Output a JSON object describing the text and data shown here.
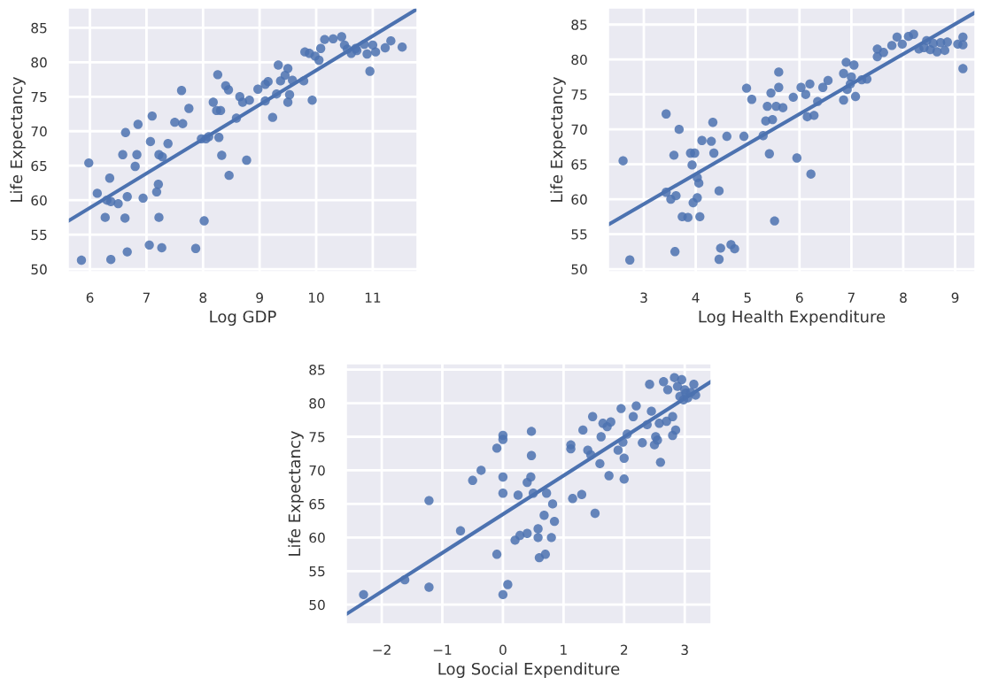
{
  "chart_data": [
    {
      "type": "scatter",
      "xlabel": "Log GDP",
      "ylabel": "Life Expectancy",
      "xlim": [
        5.6,
        11.8
      ],
      "ylim": [
        49.5,
        88
      ],
      "xticks": [
        6,
        7,
        8,
        9,
        10,
        11
      ],
      "yticks": [
        50,
        55,
        60,
        65,
        70,
        75,
        80,
        85
      ],
      "grid": true,
      "series": [
        {
          "marker": "circle",
          "color": "#4c72b0",
          "x": [
            5.85,
            5.98,
            6.13,
            6.27,
            6.3,
            6.35,
            6.37,
            6.37,
            6.5,
            6.58,
            6.62,
            6.63,
            6.66,
            6.66,
            6.8,
            6.83,
            6.85,
            6.94,
            7.05,
            7.07,
            7.1,
            7.18,
            7.21,
            7.22,
            7.22,
            7.27,
            7.28,
            7.38,
            7.5,
            7.62,
            7.64,
            7.75,
            7.87,
            7.97,
            8.02,
            8.05,
            8.1,
            8.18,
            8.24,
            8.26,
            8.28,
            8.31,
            8.33,
            8.4,
            8.45,
            8.46,
            8.59,
            8.65,
            8.7,
            8.77,
            8.82,
            8.97,
            9.1,
            9.1,
            9.15,
            9.23,
            9.3,
            9.33,
            9.37,
            9.45,
            9.5,
            9.5,
            9.53,
            9.58,
            9.78,
            9.8,
            9.88,
            9.93,
            9.98,
            10.05,
            10.08,
            10.15,
            10.3,
            10.45,
            10.5,
            10.55,
            10.62,
            10.7,
            10.72,
            10.85,
            10.9,
            10.95,
            11.0,
            11.05,
            11.22,
            11.32,
            11.52
          ],
          "values": [
            51.3,
            65.4,
            61,
            57.5,
            60,
            63.2,
            59.8,
            51.4,
            59.5,
            66.6,
            57.4,
            69.8,
            60.5,
            52.5,
            64.9,
            66.6,
            71,
            60.3,
            53.5,
            68.5,
            72.2,
            61.2,
            62.3,
            66.6,
            57.5,
            53.1,
            66.3,
            68.2,
            71.3,
            75.9,
            71.1,
            73.3,
            53,
            68.9,
            57,
            68.9,
            69.2,
            74.2,
            73,
            78.2,
            69.1,
            73,
            66.5,
            76.6,
            76,
            63.6,
            71.9,
            75,
            74.2,
            65.8,
            74.5,
            76.1,
            74.4,
            76.8,
            77.2,
            72,
            75.4,
            79.6,
            77.3,
            78.1,
            79.1,
            74.2,
            75.3,
            77.4,
            77.3,
            81.5,
            81.3,
            74.5,
            80.9,
            80.3,
            82,
            83.3,
            83.4,
            83.7,
            82.5,
            81.9,
            81.3,
            82,
            81.7,
            82.6,
            81.2,
            78.7,
            82.5,
            81.5,
            82.1,
            83.1,
            82.2
          ]
        },
        {
          "type": "line",
          "color": "#4c72b0",
          "x": [
            5.6,
            11.8
          ],
          "values": [
            56.9,
            87.8
          ]
        }
      ]
    },
    {
      "type": "scatter",
      "xlabel": "Log Health Expenditure",
      "ylabel": "Life Expectancy",
      "xlim": [
        2.3,
        9.4
      ],
      "ylim": [
        49.5,
        87.5
      ],
      "xticks": [
        3,
        4,
        5,
        6,
        7,
        8,
        9
      ],
      "yticks": [
        50,
        55,
        60,
        65,
        70,
        75,
        80,
        85
      ],
      "grid": true,
      "series": [
        {
          "marker": "circle",
          "color": "#4c72b0",
          "x": [
            2.6,
            2.73,
            3.43,
            3.43,
            3.52,
            3.58,
            3.6,
            3.62,
            3.68,
            3.74,
            3.85,
            3.9,
            3.93,
            3.95,
            3.98,
            4.03,
            4.03,
            4.06,
            4.08,
            4.12,
            4.3,
            4.33,
            4.35,
            4.45,
            4.45,
            4.48,
            4.6,
            4.68,
            4.75,
            4.93,
            4.98,
            5.08,
            5.3,
            5.35,
            5.38,
            5.42,
            5.45,
            5.48,
            5.52,
            5.55,
            5.6,
            5.6,
            5.68,
            5.88,
            5.95,
            6.03,
            6.12,
            6.15,
            6.2,
            6.22,
            6.28,
            6.35,
            6.45,
            6.55,
            6.85,
            6.85,
            6.9,
            6.92,
            6.98,
            7.0,
            7.05,
            7.08,
            7.2,
            7.3,
            7.5,
            7.5,
            7.62,
            7.78,
            7.88,
            7.98,
            8.1,
            8.2,
            8.3,
            8.4,
            8.45,
            8.52,
            8.58,
            8.65,
            8.72,
            8.8,
            8.85,
            9.05,
            9.15,
            9.15,
            9.15
          ],
          "values": [
            65.5,
            51.3,
            72.2,
            61,
            60,
            66.3,
            52.5,
            60.5,
            70,
            57.5,
            57.4,
            66.6,
            64.9,
            59.5,
            66.6,
            60.2,
            63.1,
            62.3,
            57.5,
            68.4,
            68.3,
            71,
            66.6,
            61.2,
            51.4,
            53,
            69,
            53.5,
            52.9,
            69,
            75.9,
            74.3,
            69.1,
            71.2,
            73.3,
            66.5,
            75.2,
            71.4,
            56.9,
            73.3,
            78.2,
            76,
            73.1,
            74.6,
            65.9,
            76,
            75,
            71.8,
            76.5,
            63.6,
            72,
            74,
            76,
            77,
            74.2,
            78,
            79.6,
            75.7,
            76.5,
            77.5,
            79.2,
            74.7,
            77.1,
            77.2,
            80.4,
            81.5,
            81,
            82,
            83.2,
            82.2,
            83.3,
            83.6,
            81.5,
            81.7,
            82.7,
            81.4,
            82.3,
            81.1,
            82.4,
            81.3,
            82.5,
            82.2,
            83.2,
            82.1,
            78.7
          ]
        },
        {
          "type": "line",
          "color": "#4c72b0",
          "x": [
            2.3,
            9.4
          ],
          "values": [
            56.3,
            86.8
          ]
        }
      ]
    },
    {
      "type": "scatter",
      "xlabel": "Log Social Expenditure",
      "ylabel": "Life Expectancy",
      "xlim": [
        -2.6,
        3.45
      ],
      "ylim": [
        47,
        86
      ],
      "xticks": [
        {
          "value": -2,
          "label": "−2"
        },
        {
          "value": -1,
          "label": "−1"
        },
        0,
        1,
        2,
        3
      ],
      "yticks": [
        50,
        55,
        60,
        65,
        70,
        75,
        80,
        85
      ],
      "grid": true,
      "series": [
        {
          "marker": "circle",
          "color": "#4c72b0",
          "x": [
            -2.3,
            -1.62,
            -1.22,
            -1.22,
            -0.7,
            -0.5,
            -0.36,
            -0.1,
            -0.1,
            0,
            0,
            0,
            0,
            0,
            0.08,
            0.2,
            0.25,
            0.28,
            0.4,
            0.4,
            0.46,
            0.47,
            0.47,
            0.5,
            0.58,
            0.58,
            0.6,
            0.68,
            0.7,
            0.72,
            0.8,
            0.82,
            0.85,
            1.12,
            1.12,
            1.15,
            1.3,
            1.32,
            1.4,
            1.45,
            1.48,
            1.52,
            1.6,
            1.62,
            1.65,
            1.72,
            1.75,
            1.78,
            1.9,
            1.95,
            1.98,
            2.0,
            2.0,
            2.05,
            2.15,
            2.2,
            2.3,
            2.38,
            2.42,
            2.45,
            2.5,
            2.52,
            2.55,
            2.58,
            2.6,
            2.65,
            2.7,
            2.72,
            2.8,
            2.8,
            2.83,
            2.85,
            2.88,
            2.92,
            2.95,
            2.98,
            3.0,
            3.02,
            3.05,
            3.1,
            3.15,
            3.18
          ],
          "values": [
            51.5,
            53.7,
            65.5,
            52.6,
            61,
            68.5,
            70,
            73.3,
            57.5,
            75.2,
            74.6,
            69,
            66.6,
            51.5,
            53,
            59.6,
            66.3,
            60.3,
            60.6,
            68.2,
            69,
            75.8,
            72.2,
            66.6,
            61.3,
            60,
            57,
            63.3,
            57.5,
            66.6,
            60,
            65,
            62.4,
            73.2,
            73.8,
            65.8,
            66.4,
            76,
            73,
            72.3,
            78,
            63.6,
            71,
            75,
            77,
            76.5,
            69.2,
            77.2,
            73,
            79.2,
            74.2,
            68.7,
            71.8,
            75.4,
            78,
            79.6,
            74.1,
            76.8,
            82.8,
            78.8,
            73.8,
            75,
            74.5,
            77,
            71.2,
            83.2,
            77.3,
            82,
            75.2,
            78,
            83.8,
            76,
            82.5,
            81,
            83.5,
            80.5,
            82,
            81.5,
            80.8,
            81.6,
            82.8,
            81.2
          ]
        },
        {
          "type": "line",
          "color": "#4c72b0",
          "x": [
            -2.6,
            3.45
          ],
          "values": [
            48.5,
            83.3
          ]
        }
      ]
    }
  ]
}
